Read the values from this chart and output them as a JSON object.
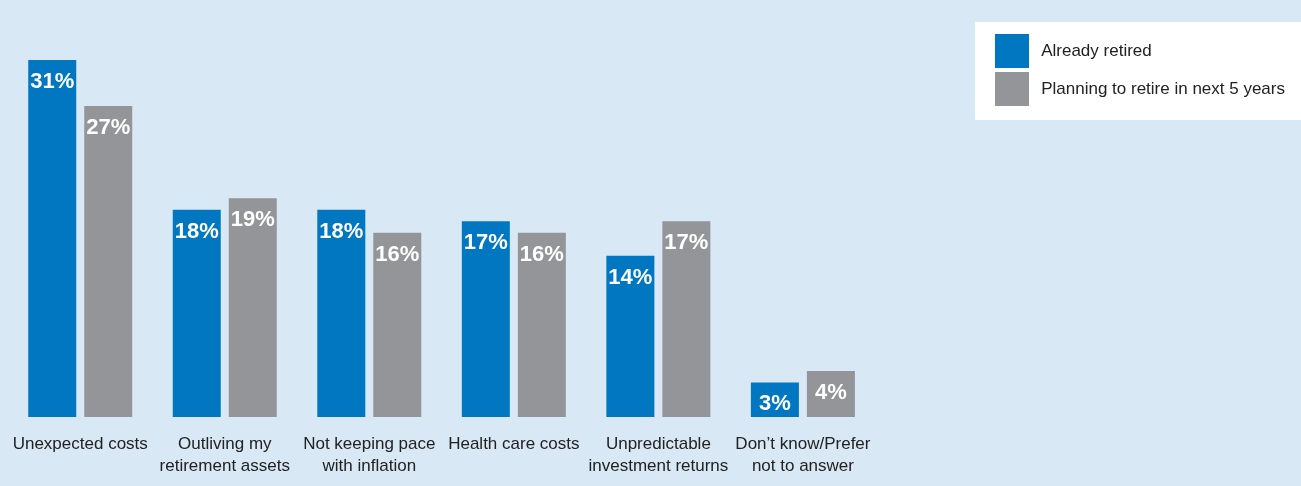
{
  "chart_data": {
    "type": "bar",
    "categories": [
      "Unexpected costs",
      "Outliving my retirement assets",
      "Not keeping pace with inflation",
      "Health care costs",
      "Unpredictable investment returns",
      "Don’t know/Prefer not to answer"
    ],
    "series": [
      {
        "name": "Already retired",
        "color": "#0077c0",
        "values": [
          31,
          18,
          18,
          17,
          14,
          3
        ],
        "value_labels": [
          "31%",
          "18%",
          "18%",
          "17%",
          "14%",
          "3%"
        ]
      },
      {
        "name": "Planning to retire in next 5 years",
        "color": "#939598",
        "values": [
          27,
          19,
          16,
          16,
          17,
          4
        ],
        "value_labels": [
          "27%",
          "19%",
          "16%",
          "16%",
          "17%",
          "4%"
        ]
      }
    ],
    "grid": false,
    "legend": "top right"
  }
}
